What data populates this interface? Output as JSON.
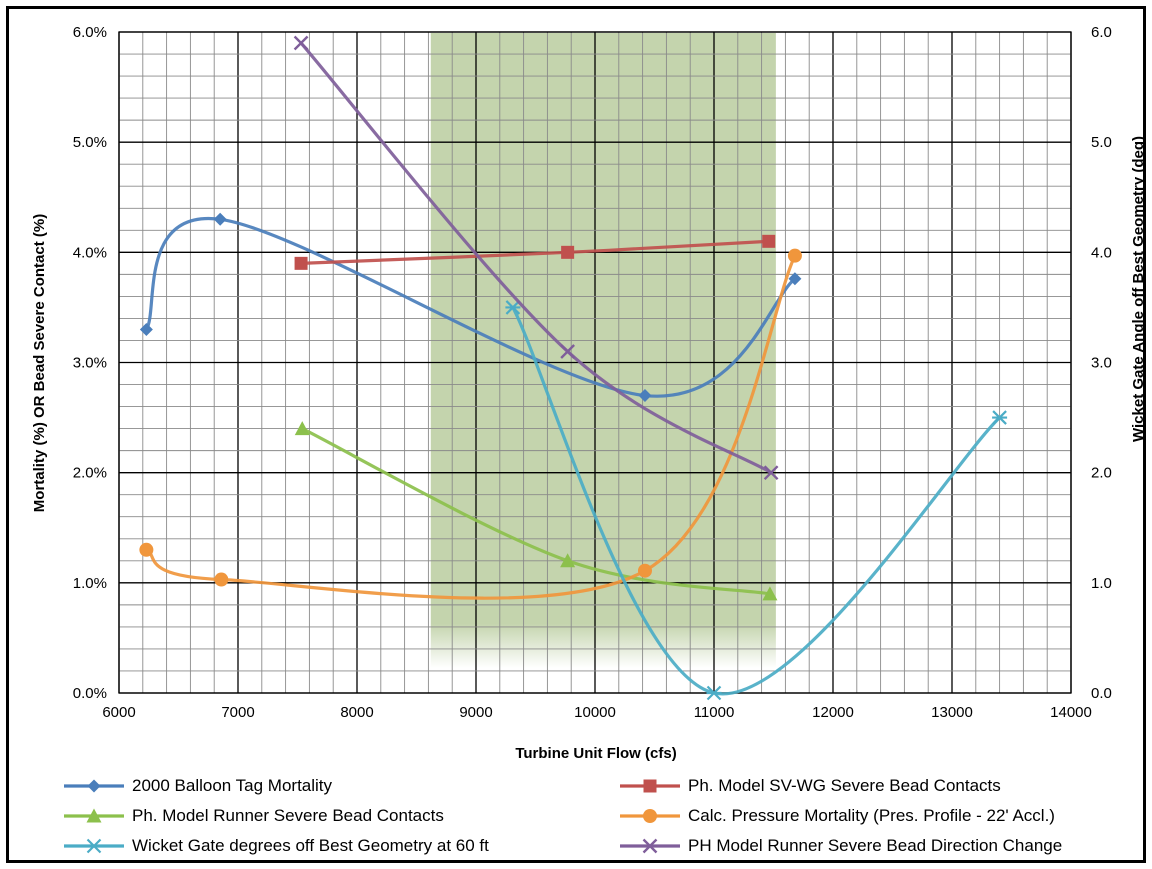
{
  "chart_data": {
    "type": "line",
    "title": "",
    "xlabel": "Turbine Unit Flow (cfs)",
    "ylabel": "Mortality (%)  OR Bead Severe Contact (%)",
    "y2label": "Wicket Gate Angle off Best Geometry (deg)",
    "xlim": [
      6000,
      14000
    ],
    "ylim": [
      0,
      6
    ],
    "y2lim": [
      0,
      6
    ],
    "x_ticks": [
      "6000",
      "7000",
      "8000",
      "9000",
      "10000",
      "11000",
      "12000",
      "13000",
      "14000"
    ],
    "y_ticks": [
      "0.0%",
      "1.0%",
      "2.0%",
      "3.0%",
      "4.0%",
      "5.0%",
      "6.0%"
    ],
    "y2_ticks": [
      "0.0",
      "1.0",
      "2.0",
      "3.0",
      "4.0",
      "5.0",
      "6.0"
    ],
    "grid": true,
    "legend_position": "bottom",
    "shaded_region": {
      "x_start": 8620,
      "x_end": 11520,
      "color": "#c4d4ad"
    },
    "series": [
      {
        "name": "2000 Balloon Tag Mortality",
        "color": "#4a7ebb",
        "marker": "diamond",
        "axis": "left",
        "x": [
          6230,
          6850,
          10420,
          11680
        ],
        "y": [
          3.3,
          4.3,
          2.7,
          3.76
        ]
      },
      {
        "name": "Ph. Model SV-WG Severe Bead Contacts",
        "color": "#c0504d",
        "marker": "square",
        "axis": "left",
        "x": [
          7530,
          9770,
          11460
        ],
        "y": [
          3.9,
          4.0,
          4.1
        ]
      },
      {
        "name": "Ph. Model Runner Severe Bead Contacts",
        "color": "#8cc04c",
        "marker": "triangle",
        "axis": "left",
        "x": [
          7540,
          9770,
          11470
        ],
        "y": [
          2.4,
          1.2,
          0.9
        ]
      },
      {
        "name": "Calc. Pressure Mortality (Pres. Profile - 22' Accl.)",
        "color": "#f0963c",
        "marker": "circle",
        "axis": "left",
        "x": [
          6230,
          6860,
          10420,
          11680
        ],
        "y": [
          1.3,
          1.03,
          1.11,
          3.97
        ]
      },
      {
        "name": "Wicket Gate degrees off Best Geometry at 60 ft",
        "color": "#4bacc6",
        "marker": "star",
        "axis": "right",
        "x": [
          9310,
          11000,
          13400
        ],
        "y": [
          3.5,
          0.0,
          2.5
        ]
      },
      {
        "name": "PH Model Runner Severe Bead Direction Change",
        "color": "#7f5e9a",
        "marker": "x",
        "axis": "left",
        "x": [
          7530,
          9770,
          11480
        ],
        "y": [
          5.9,
          3.1,
          2.0
        ]
      }
    ]
  }
}
